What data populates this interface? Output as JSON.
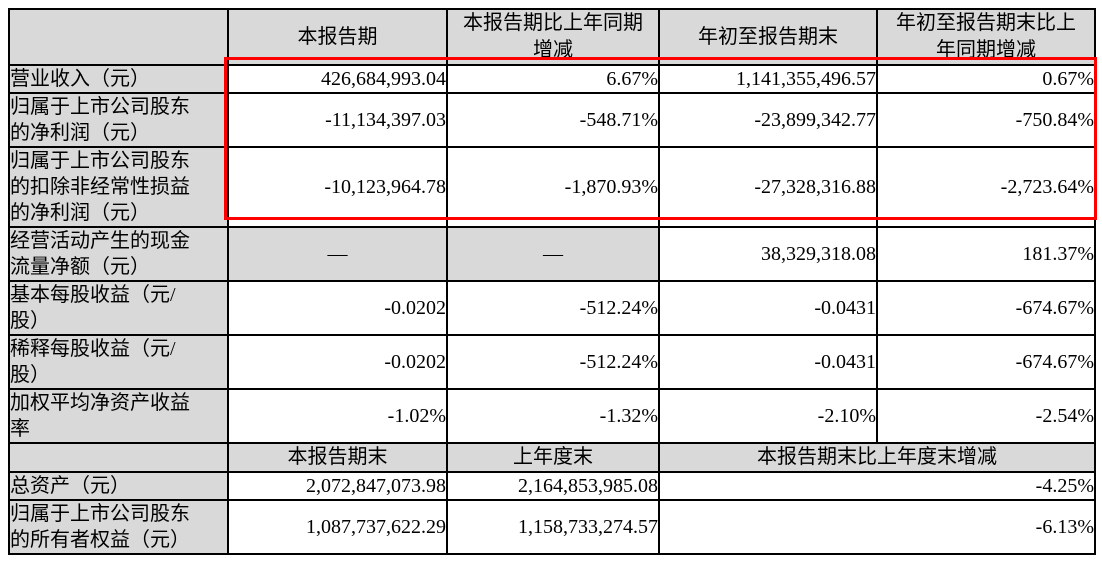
{
  "colors": {
    "header_bg": "#d9d9d9",
    "border": "#000000",
    "highlight_box": "#ff0000",
    "page_bg": "#ffffff"
  },
  "table": {
    "columns": {
      "corner": "",
      "current_period": "本报告期",
      "current_period_yoy": "本报告期比上年同期\n增减",
      "ytd": "年初至报告期末",
      "ytd_yoy": "年初至报告期末比上\n年同期增减"
    },
    "rows": [
      {
        "label": "营业收入（元）",
        "values": [
          "426,684,993.04",
          "6.67%",
          "1,141,355,496.57",
          "0.67%"
        ]
      },
      {
        "label": "归属于上市公司股东\n的净利润（元）",
        "values": [
          "-11,134,397.03",
          "-548.71%",
          "-23,899,342.77",
          "-750.84%"
        ]
      },
      {
        "label": "归属于上市公司股东\n的扣除非经常性损益\n的净利润（元）",
        "values": [
          "-10,123,964.78",
          "-1,870.93%",
          "-27,328,316.88",
          "-2,723.64%"
        ]
      },
      {
        "label": "经营活动产生的现金\n流量净额（元）",
        "values": [
          "—",
          "—",
          "38,329,318.08",
          "181.37%"
        ]
      },
      {
        "label": "基本每股收益（元/\n股）",
        "values": [
          "-0.0202",
          "-512.24%",
          "-0.0431",
          "-674.67%"
        ]
      },
      {
        "label": "稀释每股收益（元/\n股）",
        "values": [
          "-0.0202",
          "-512.24%",
          "-0.0431",
          "-674.67%"
        ]
      },
      {
        "label": "加权平均净资产收益\n率",
        "values": [
          "-1.02%",
          "-1.32%",
          "-2.10%",
          "-2.54%"
        ]
      }
    ],
    "subheader": {
      "corner": "",
      "period_end": "本报告期末",
      "prior_year_end": "上年度末",
      "change": "本报告期末比上年度末增减"
    },
    "bottom_rows": [
      {
        "label": "总资产（元）",
        "values": [
          "2,072,847,073.98",
          "2,164,853,985.08",
          "-4.25%"
        ]
      },
      {
        "label": "归属于上市公司股东\n的所有者权益（元）",
        "values": [
          "1,087,737,622.29",
          "1,158,733,274.57",
          "-6.13%"
        ]
      }
    ]
  }
}
